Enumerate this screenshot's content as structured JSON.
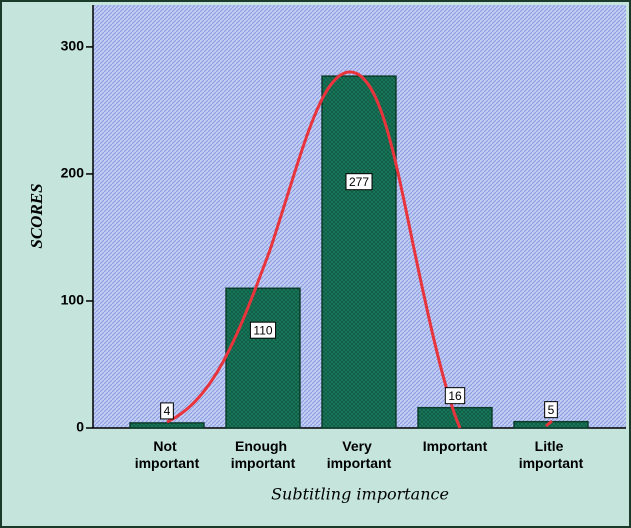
{
  "chart_data": {
    "type": "bar",
    "title": null,
    "x_label": "Subtitling importance",
    "y_label": "SCORES",
    "categories": [
      "Not important",
      "Enough important",
      "Very important",
      "Important",
      "Litle important"
    ],
    "values": [
      4,
      110,
      277,
      16,
      5
    ],
    "color": "#1a7a5c",
    "ylim": [
      0,
      333
    ],
    "yticks": [
      0,
      100,
      200,
      300
    ],
    "grid": false
  }
}
